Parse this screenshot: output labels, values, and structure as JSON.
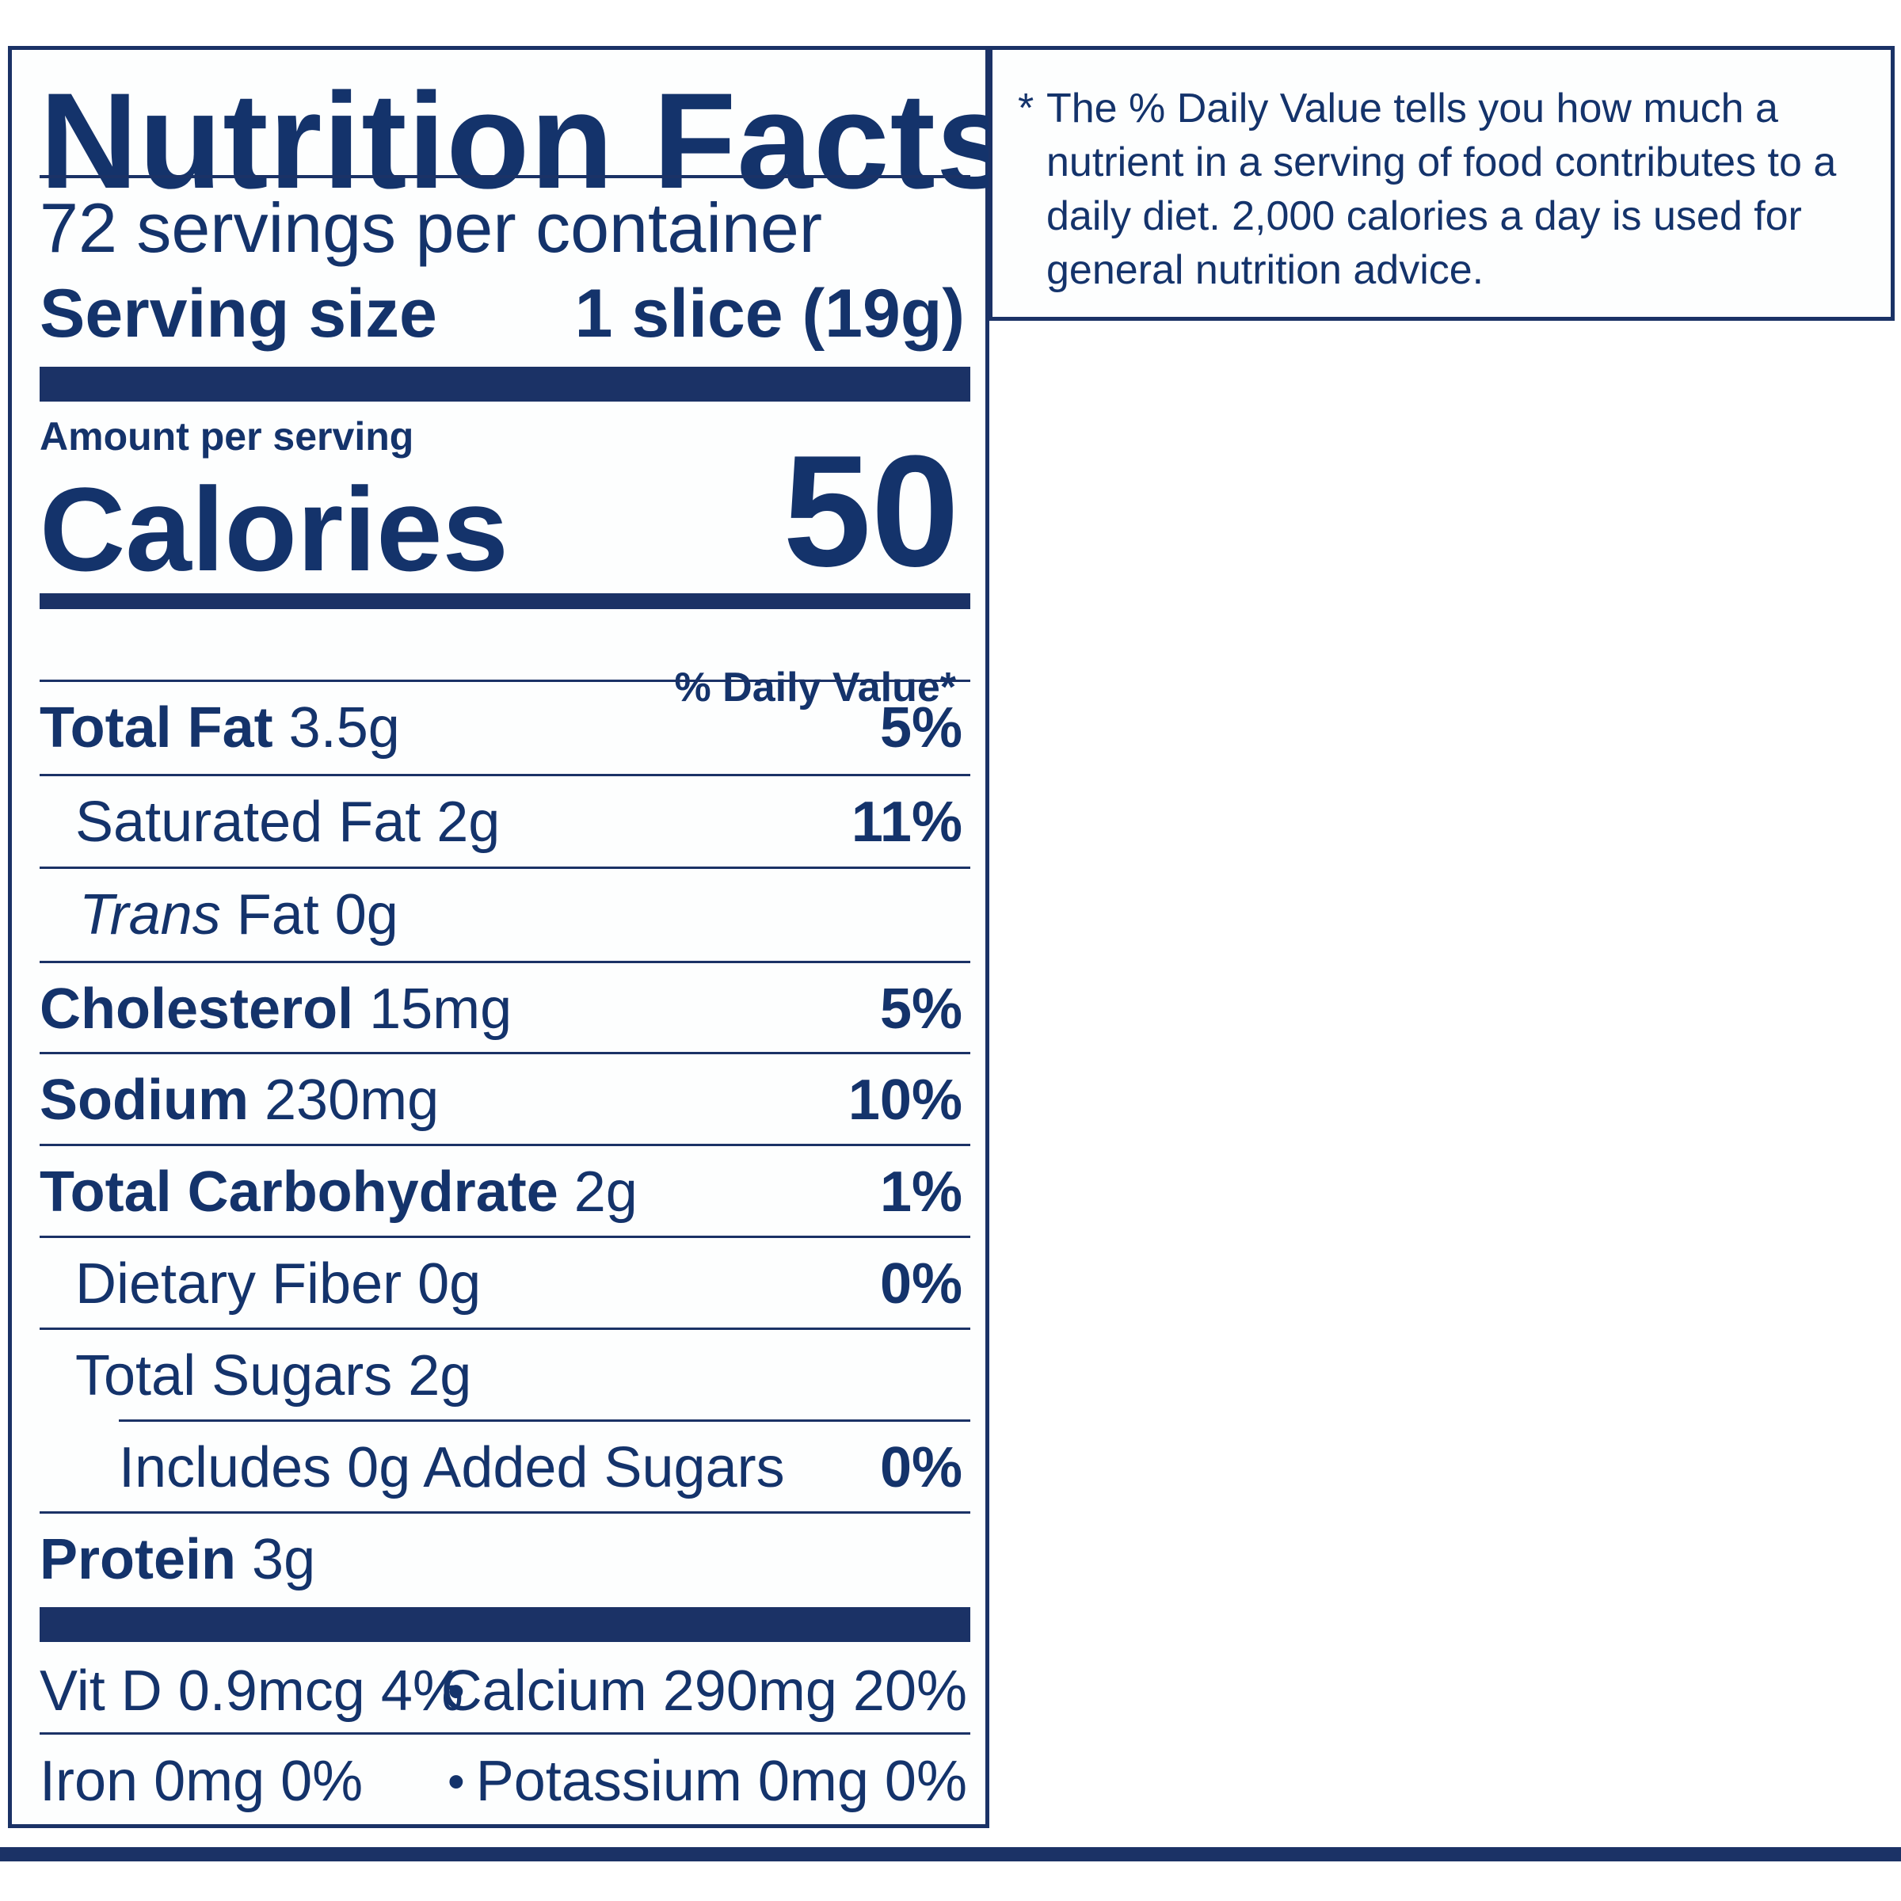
{
  "label": {
    "title": "Nutrition Facts",
    "servings_per_container": "72 servings per container",
    "serving_size_label": "Serving size",
    "serving_size_value": "1 slice (19g)",
    "amount_per_serving": "Amount per serving",
    "calories_label": "Calories",
    "calories_value": "50",
    "daily_value_header": "% Daily Value*",
    "nutrients": [
      {
        "name": "Total Fat",
        "amount": "3.5g",
        "dv": "5%"
      },
      {
        "name": "Saturated Fat 2g",
        "dv": "11%"
      },
      {
        "name_italic": "Trans",
        "name_rest": "Fat 0g"
      },
      {
        "name": "Cholesterol",
        "amount": "15mg",
        "dv": "5%"
      },
      {
        "name": "Sodium",
        "amount": "230mg",
        "dv": "10%"
      },
      {
        "name": "Total Carbohydrate",
        "amount": "2g",
        "dv": "1%"
      },
      {
        "name": "Dietary Fiber 0g",
        "dv": "0%"
      },
      {
        "name": "Total Sugars 2g"
      },
      {
        "name": "Includes 0g Added Sugars",
        "dv": "0%"
      },
      {
        "name": "Protein",
        "amount": "3g"
      }
    ],
    "vitamins": [
      {
        "left": "Vit D 0.9mcg 4%",
        "bullet": "•",
        "right": "Calcium 290mg 20%"
      },
      {
        "left": "Iron 0mg 0%",
        "bullet": "•",
        "right": "Potassium 0mg 0%"
      }
    ]
  },
  "footnote": {
    "star": "*",
    "text": "The % Daily Value tells you how much a nutrient in a serving of food contributes to a daily diet. 2,000 calories a day is used for general nutrition advice."
  },
  "colors": {
    "ink": "#14336b",
    "rule": "#1b3266",
    "background": "#ffffff"
  }
}
